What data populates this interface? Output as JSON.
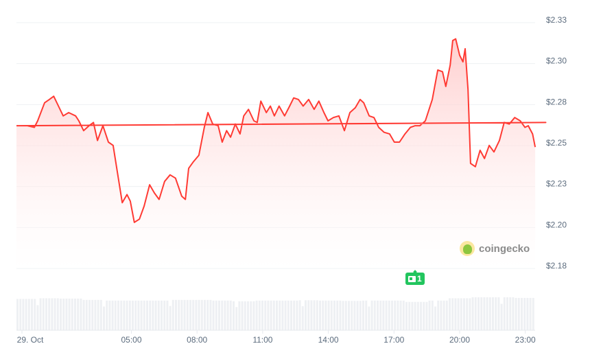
{
  "chart_data": {
    "type": "line",
    "title": "",
    "xlabel": "",
    "ylabel": "",
    "line_color": "#ff3a33",
    "fill_color": "#ffd6d6",
    "grid": true,
    "y_axis_position": "right",
    "ylim": [
      2.175,
      2.325
    ],
    "y_ticks": [
      "$2.33",
      "$2.30",
      "$2.28",
      "$2.25",
      "$2.23",
      "$2.20",
      "$2.18"
    ],
    "y_tick_values": [
      2.325,
      2.3,
      2.275,
      2.25,
      2.225,
      2.2,
      2.175
    ],
    "x_ticks": [
      "29. Oct",
      "05:00",
      "08:00",
      "11:00",
      "14:00",
      "17:00",
      "20:00",
      "23:00"
    ],
    "x_tick_times": [
      "00:00",
      "05:00",
      "08:00",
      "11:00",
      "14:00",
      "17:00",
      "20:00",
      "23:00"
    ],
    "series": [
      {
        "times": [
          "23:45",
          "23:56",
          "00:15",
          "00:34",
          "00:43",
          "01:02",
          "01:15",
          "01:27",
          "01:40",
          "01:53",
          "02:08",
          "02:27",
          "02:36",
          "02:49",
          "03:04",
          "03:16",
          "03:27",
          "03:42",
          "03:57",
          "04:10",
          "04:20",
          "04:35",
          "04:48",
          "04:57",
          "05:08",
          "05:22",
          "05:35",
          "05:50",
          "06:03",
          "06:16",
          "06:31",
          "06:46",
          "07:01",
          "07:18",
          "07:28",
          "07:37",
          "07:50",
          "08:05",
          "08:20",
          "08:30",
          "08:43",
          "08:58",
          "09:09",
          "09:21",
          "09:32",
          "09:45",
          "09:58",
          "10:08",
          "10:21",
          "10:36",
          "10:45",
          "10:55",
          "11:10",
          "11:21",
          "11:32",
          "11:45",
          "12:00",
          "12:14",
          "12:25",
          "12:38",
          "12:51",
          "13:06",
          "13:21",
          "13:34",
          "13:48",
          "13:59",
          "14:14",
          "14:29",
          "14:44",
          "14:59",
          "15:14",
          "15:27",
          "15:37",
          "15:52",
          "16:05",
          "16:18",
          "16:33",
          "16:48",
          "17:01",
          "17:15",
          "17:30",
          "17:45",
          "17:58",
          "18:11",
          "18:26",
          "18:45",
          "19:00",
          "19:13",
          "19:22",
          "19:34",
          "19:41",
          "19:49",
          "20:00",
          "20:09",
          "20:15",
          "20:23",
          "20:30",
          "20:43",
          "20:56",
          "21:08",
          "21:21",
          "21:34",
          "21:49",
          "22:02",
          "22:16",
          "22:31",
          "22:46",
          "22:59",
          "23:08",
          "23:20",
          "23:27"
        ],
        "values": [
          2.26,
          2.262,
          2.26,
          2.259,
          2.263,
          2.274,
          2.276,
          2.278,
          2.272,
          2.266,
          2.268,
          2.266,
          2.263,
          2.257,
          2.26,
          2.262,
          2.251,
          2.26,
          2.25,
          2.248,
          2.234,
          2.213,
          2.218,
          2.214,
          2.201,
          2.203,
          2.211,
          2.224,
          2.219,
          2.215,
          2.226,
          2.23,
          2.228,
          2.217,
          2.215,
          2.234,
          2.238,
          2.242,
          2.259,
          2.268,
          2.261,
          2.26,
          2.25,
          2.257,
          2.253,
          2.261,
          2.255,
          2.266,
          2.27,
          2.263,
          2.262,
          2.275,
          2.268,
          2.272,
          2.266,
          2.272,
          2.266,
          2.272,
          2.277,
          2.276,
          2.272,
          2.276,
          2.27,
          2.275,
          2.268,
          2.263,
          2.265,
          2.266,
          2.257,
          2.268,
          2.271,
          2.276,
          2.274,
          2.266,
          2.265,
          2.259,
          2.256,
          2.255,
          2.25,
          2.25,
          2.255,
          2.259,
          2.26,
          2.26,
          2.263,
          2.276,
          2.294,
          2.293,
          2.284,
          2.297,
          2.312,
          2.313,
          2.303,
          2.299,
          2.307,
          2.282,
          2.237,
          2.235,
          2.245,
          2.24,
          2.248,
          2.244,
          2.251,
          2.262,
          2.261,
          2.265,
          2.263,
          2.259,
          2.26,
          2.255,
          2.247
        ]
      }
    ],
    "volume_relative": [
      0.95,
      0.97,
      0.96,
      0.92,
      0.9,
      0.9,
      0.9,
      0.92,
      0.92,
      0.9,
      0.88,
      0.9,
      0.9,
      0.91,
      0.9,
      0.89,
      0.9,
      0.9,
      0.86,
      0.9,
      0.97,
      1.0,
      1.0,
      0.98
    ],
    "volume_color": "#eef0f3"
  },
  "news_badge": {
    "count": "1",
    "icon": "newspaper-icon",
    "color": "#22c55e"
  },
  "watermark": {
    "text": "coingecko"
  }
}
